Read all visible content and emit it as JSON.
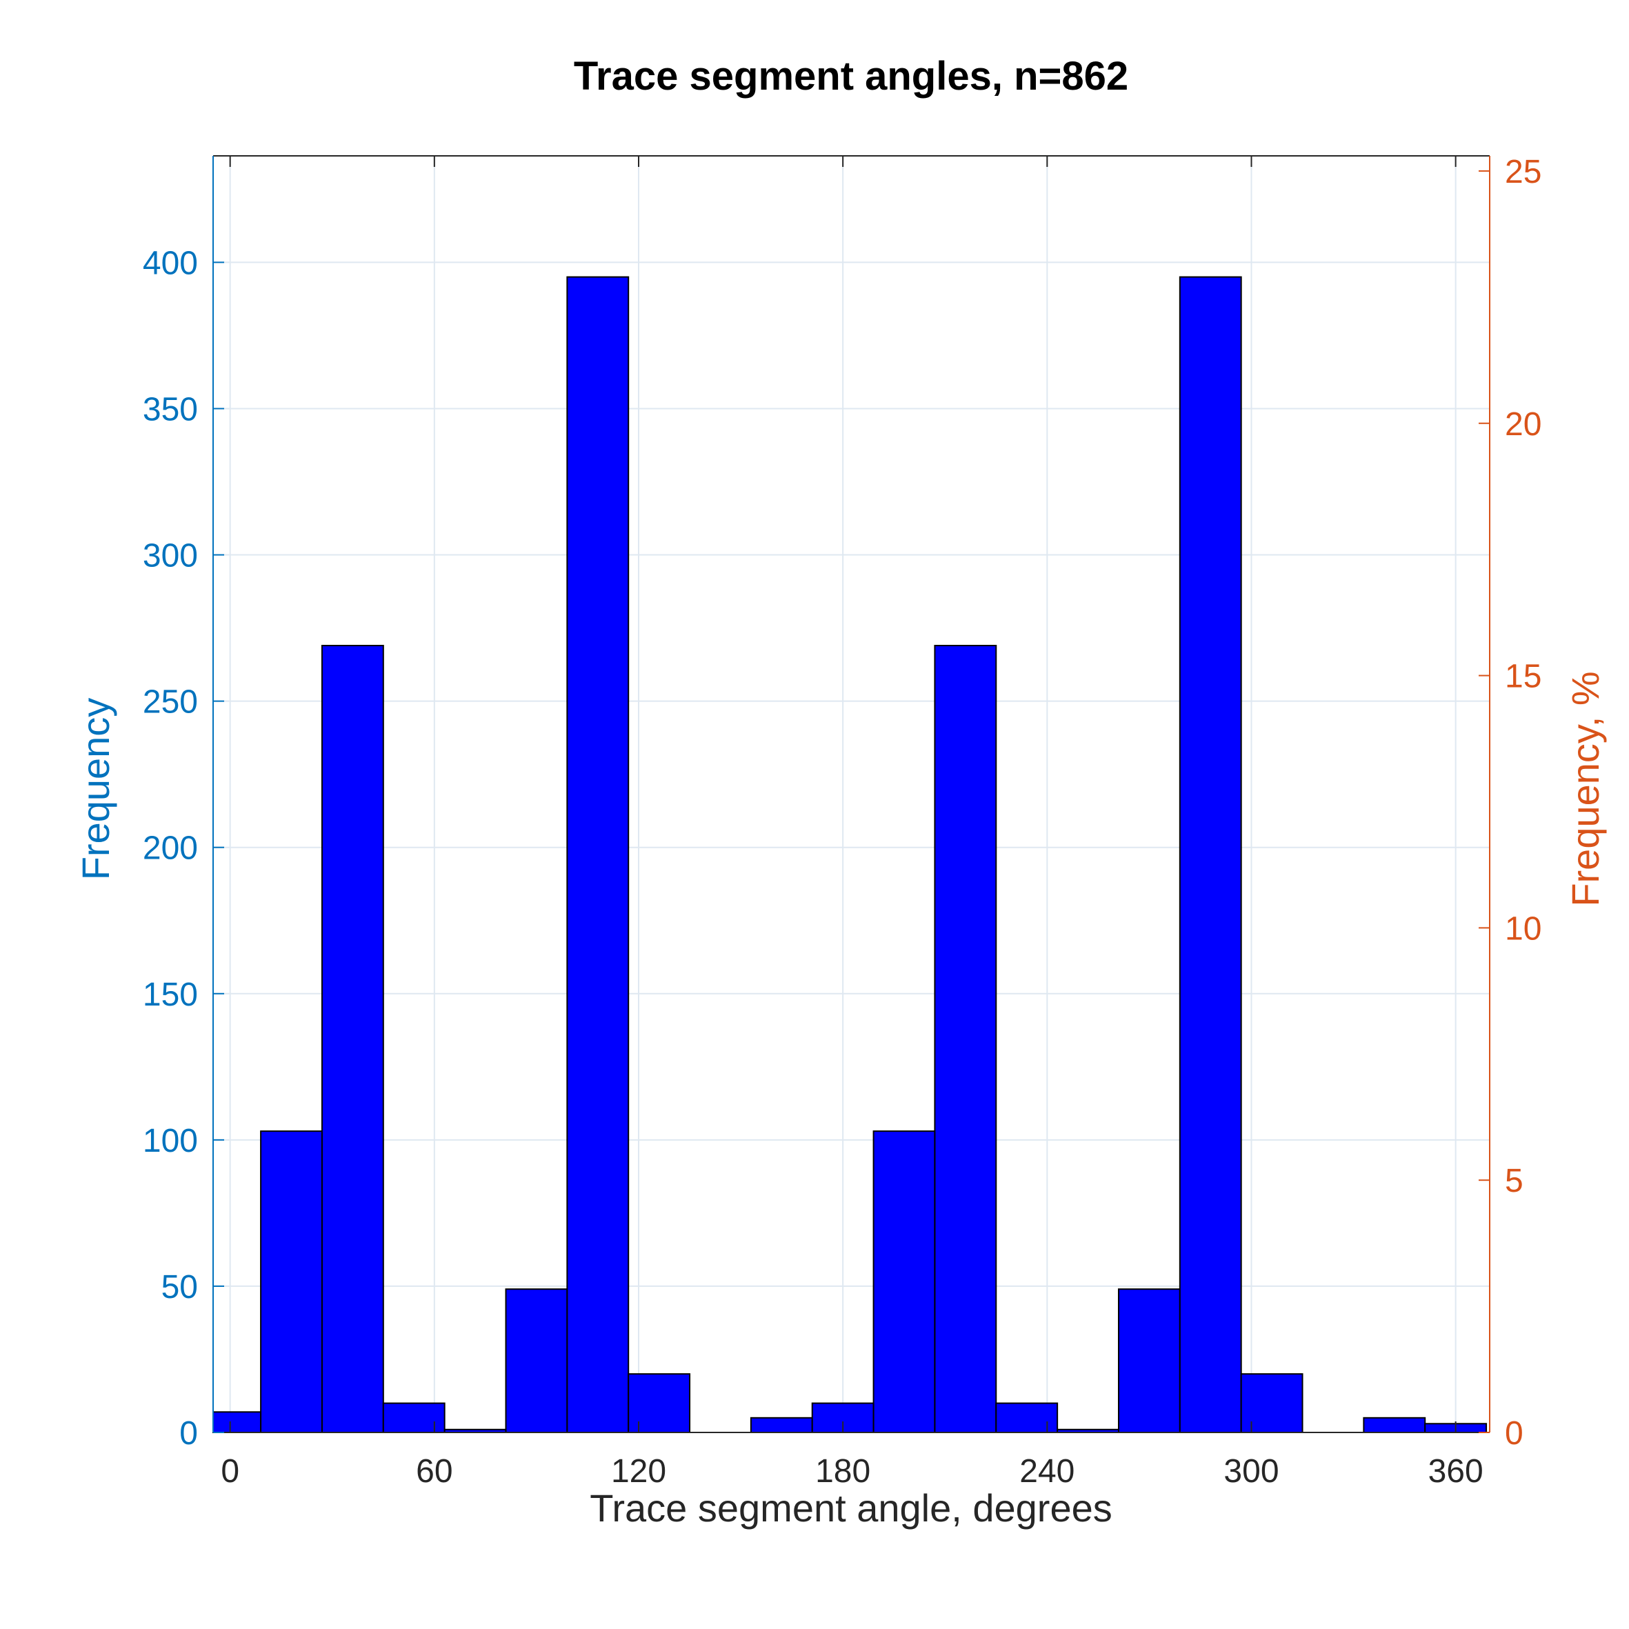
{
  "chart_data": {
    "type": "bar",
    "title": "Trace segment angles, n=862",
    "xlabel": "Trace segment angle, degrees",
    "ylabel": "Frequency",
    "ylabel_right": "Frequency, %",
    "xlim": [
      -5,
      370
    ],
    "ylim": [
      0,
      436.4
    ],
    "ylim_right": [
      0,
      25.3
    ],
    "xticks": [
      "0",
      "60",
      "120",
      "180",
      "240",
      "300",
      "360"
    ],
    "xtick_values": [
      0,
      60,
      120,
      180,
      240,
      300,
      360
    ],
    "yticks": [
      "0",
      "50",
      "100",
      "150",
      "200",
      "250",
      "300",
      "350",
      "400"
    ],
    "ytick_values": [
      0,
      50,
      100,
      150,
      200,
      250,
      300,
      350,
      400
    ],
    "yticks_right": [
      "0",
      "5",
      "10",
      "15",
      "20",
      "25"
    ],
    "ytick_values_right": [
      0,
      5,
      10,
      15,
      20,
      25
    ],
    "bin_edges": [
      -9,
      9,
      27,
      45,
      63,
      81,
      99,
      117,
      135,
      153,
      171,
      189,
      207,
      225,
      243,
      261,
      279,
      297,
      315,
      333,
      351,
      369
    ],
    "values": [
      7,
      103,
      269,
      10,
      1,
      49,
      395,
      20,
      0,
      5,
      10,
      103,
      269,
      10,
      1,
      49,
      395,
      20,
      0,
      5,
      3
    ],
    "grid": true,
    "colors": {
      "bar_fill": "#0000FF",
      "bar_edge": "#000000",
      "left_axis": "#0072BD",
      "right_axis": "#D95319",
      "grid": "#DFE8F1"
    }
  }
}
